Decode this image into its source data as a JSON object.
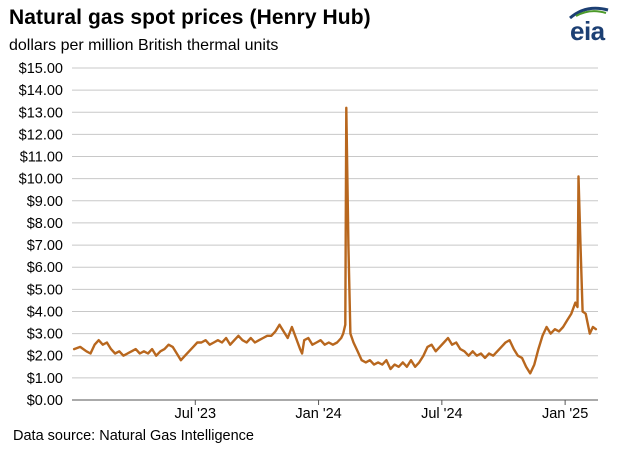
{
  "header": {
    "title": "Natural gas spot prices (Henry Hub)",
    "subtitle": "dollars per million British thermal units",
    "logo_text": "eia"
  },
  "footer": {
    "source": "Data source: Natural Gas Intelligence"
  },
  "colors": {
    "line": "#b8671e",
    "grid": "#c8c8c8",
    "logo_blue": "#1c3f73",
    "logo_green": "#4c9a2a"
  },
  "chart_data": {
    "type": "line",
    "title": "Natural gas spot prices (Henry Hub)",
    "subtitle": "dollars per million British thermal units",
    "xlabel": "",
    "ylabel": "dollars per million British thermal units",
    "ylim": [
      0,
      15
    ],
    "x_range_months": [
      0,
      25.6
    ],
    "y_tick_labels": [
      "$0.00",
      "$1.00",
      "$2.00",
      "$3.00",
      "$4.00",
      "$5.00",
      "$6.00",
      "$7.00",
      "$8.00",
      "$9.00",
      "$10.00",
      "$11.00",
      "$12.00",
      "$13.00",
      "$14.00",
      "$15.00"
    ],
    "x_ticks": [
      {
        "label": "Jul '23",
        "month": 6
      },
      {
        "label": "Jan '24",
        "month": 12
      },
      {
        "label": "Jul '24",
        "month": 18
      },
      {
        "label": "Jan '25",
        "month": 24
      }
    ],
    "grid": true,
    "x_origin": "Jan 2023 (months since)",
    "series": [
      {
        "name": "Henry Hub spot price",
        "points": [
          [
            0.1,
            2.3
          ],
          [
            0.4,
            2.4
          ],
          [
            0.7,
            2.2
          ],
          [
            0.9,
            2.1
          ],
          [
            1.1,
            2.5
          ],
          [
            1.3,
            2.7
          ],
          [
            1.5,
            2.5
          ],
          [
            1.7,
            2.6
          ],
          [
            1.9,
            2.3
          ],
          [
            2.1,
            2.1
          ],
          [
            2.3,
            2.2
          ],
          [
            2.5,
            2.0
          ],
          [
            2.7,
            2.1
          ],
          [
            2.9,
            2.2
          ],
          [
            3.1,
            2.3
          ],
          [
            3.3,
            2.1
          ],
          [
            3.5,
            2.2
          ],
          [
            3.7,
            2.1
          ],
          [
            3.9,
            2.3
          ],
          [
            4.1,
            2.0
          ],
          [
            4.3,
            2.2
          ],
          [
            4.5,
            2.3
          ],
          [
            4.7,
            2.5
          ],
          [
            4.9,
            2.4
          ],
          [
            5.1,
            2.1
          ],
          [
            5.3,
            1.8
          ],
          [
            5.5,
            2.0
          ],
          [
            5.7,
            2.2
          ],
          [
            5.9,
            2.4
          ],
          [
            6.1,
            2.6
          ],
          [
            6.3,
            2.6
          ],
          [
            6.5,
            2.7
          ],
          [
            6.7,
            2.5
          ],
          [
            6.9,
            2.6
          ],
          [
            7.1,
            2.7
          ],
          [
            7.3,
            2.6
          ],
          [
            7.5,
            2.8
          ],
          [
            7.7,
            2.5
          ],
          [
            7.9,
            2.7
          ],
          [
            8.1,
            2.9
          ],
          [
            8.3,
            2.7
          ],
          [
            8.5,
            2.6
          ],
          [
            8.7,
            2.8
          ],
          [
            8.9,
            2.6
          ],
          [
            9.1,
            2.7
          ],
          [
            9.3,
            2.8
          ],
          [
            9.5,
            2.9
          ],
          [
            9.7,
            2.9
          ],
          [
            9.9,
            3.1
          ],
          [
            10.1,
            3.4
          ],
          [
            10.3,
            3.1
          ],
          [
            10.5,
            2.8
          ],
          [
            10.7,
            3.3
          ],
          [
            10.9,
            2.8
          ],
          [
            11.1,
            2.3
          ],
          [
            11.2,
            2.1
          ],
          [
            11.3,
            2.7
          ],
          [
            11.5,
            2.8
          ],
          [
            11.7,
            2.5
          ],
          [
            11.9,
            2.6
          ],
          [
            12.1,
            2.7
          ],
          [
            12.3,
            2.5
          ],
          [
            12.5,
            2.6
          ],
          [
            12.7,
            2.5
          ],
          [
            12.9,
            2.6
          ],
          [
            13.1,
            2.8
          ],
          [
            13.2,
            3.0
          ],
          [
            13.3,
            3.4
          ],
          [
            13.35,
            13.2
          ],
          [
            13.45,
            7.0
          ],
          [
            13.55,
            3.0
          ],
          [
            13.7,
            2.6
          ],
          [
            13.9,
            2.2
          ],
          [
            14.1,
            1.8
          ],
          [
            14.3,
            1.7
          ],
          [
            14.5,
            1.8
          ],
          [
            14.7,
            1.6
          ],
          [
            14.9,
            1.7
          ],
          [
            15.1,
            1.6
          ],
          [
            15.3,
            1.8
          ],
          [
            15.5,
            1.4
          ],
          [
            15.7,
            1.6
          ],
          [
            15.9,
            1.5
          ],
          [
            16.1,
            1.7
          ],
          [
            16.3,
            1.5
          ],
          [
            16.5,
            1.8
          ],
          [
            16.7,
            1.5
          ],
          [
            16.9,
            1.7
          ],
          [
            17.1,
            2.0
          ],
          [
            17.3,
            2.4
          ],
          [
            17.5,
            2.5
          ],
          [
            17.7,
            2.2
          ],
          [
            17.9,
            2.4
          ],
          [
            18.1,
            2.6
          ],
          [
            18.3,
            2.8
          ],
          [
            18.5,
            2.5
          ],
          [
            18.7,
            2.6
          ],
          [
            18.9,
            2.3
          ],
          [
            19.1,
            2.2
          ],
          [
            19.3,
            2.0
          ],
          [
            19.5,
            2.2
          ],
          [
            19.7,
            2.0
          ],
          [
            19.9,
            2.1
          ],
          [
            20.1,
            1.9
          ],
          [
            20.3,
            2.1
          ],
          [
            20.5,
            2.0
          ],
          [
            20.7,
            2.2
          ],
          [
            20.9,
            2.4
          ],
          [
            21.1,
            2.6
          ],
          [
            21.3,
            2.7
          ],
          [
            21.5,
            2.3
          ],
          [
            21.7,
            2.0
          ],
          [
            21.9,
            1.9
          ],
          [
            22.1,
            1.5
          ],
          [
            22.3,
            1.2
          ],
          [
            22.5,
            1.6
          ],
          [
            22.7,
            2.3
          ],
          [
            22.9,
            2.9
          ],
          [
            23.1,
            3.3
          ],
          [
            23.3,
            3.0
          ],
          [
            23.5,
            3.2
          ],
          [
            23.7,
            3.1
          ],
          [
            23.9,
            3.3
          ],
          [
            24.1,
            3.6
          ],
          [
            24.3,
            3.9
          ],
          [
            24.5,
            4.4
          ],
          [
            24.6,
            4.2
          ],
          [
            24.65,
            10.1
          ],
          [
            24.75,
            7.0
          ],
          [
            24.85,
            4.0
          ],
          [
            25.0,
            3.9
          ],
          [
            25.2,
            3.0
          ],
          [
            25.35,
            3.3
          ],
          [
            25.5,
            3.2
          ]
        ]
      }
    ]
  }
}
